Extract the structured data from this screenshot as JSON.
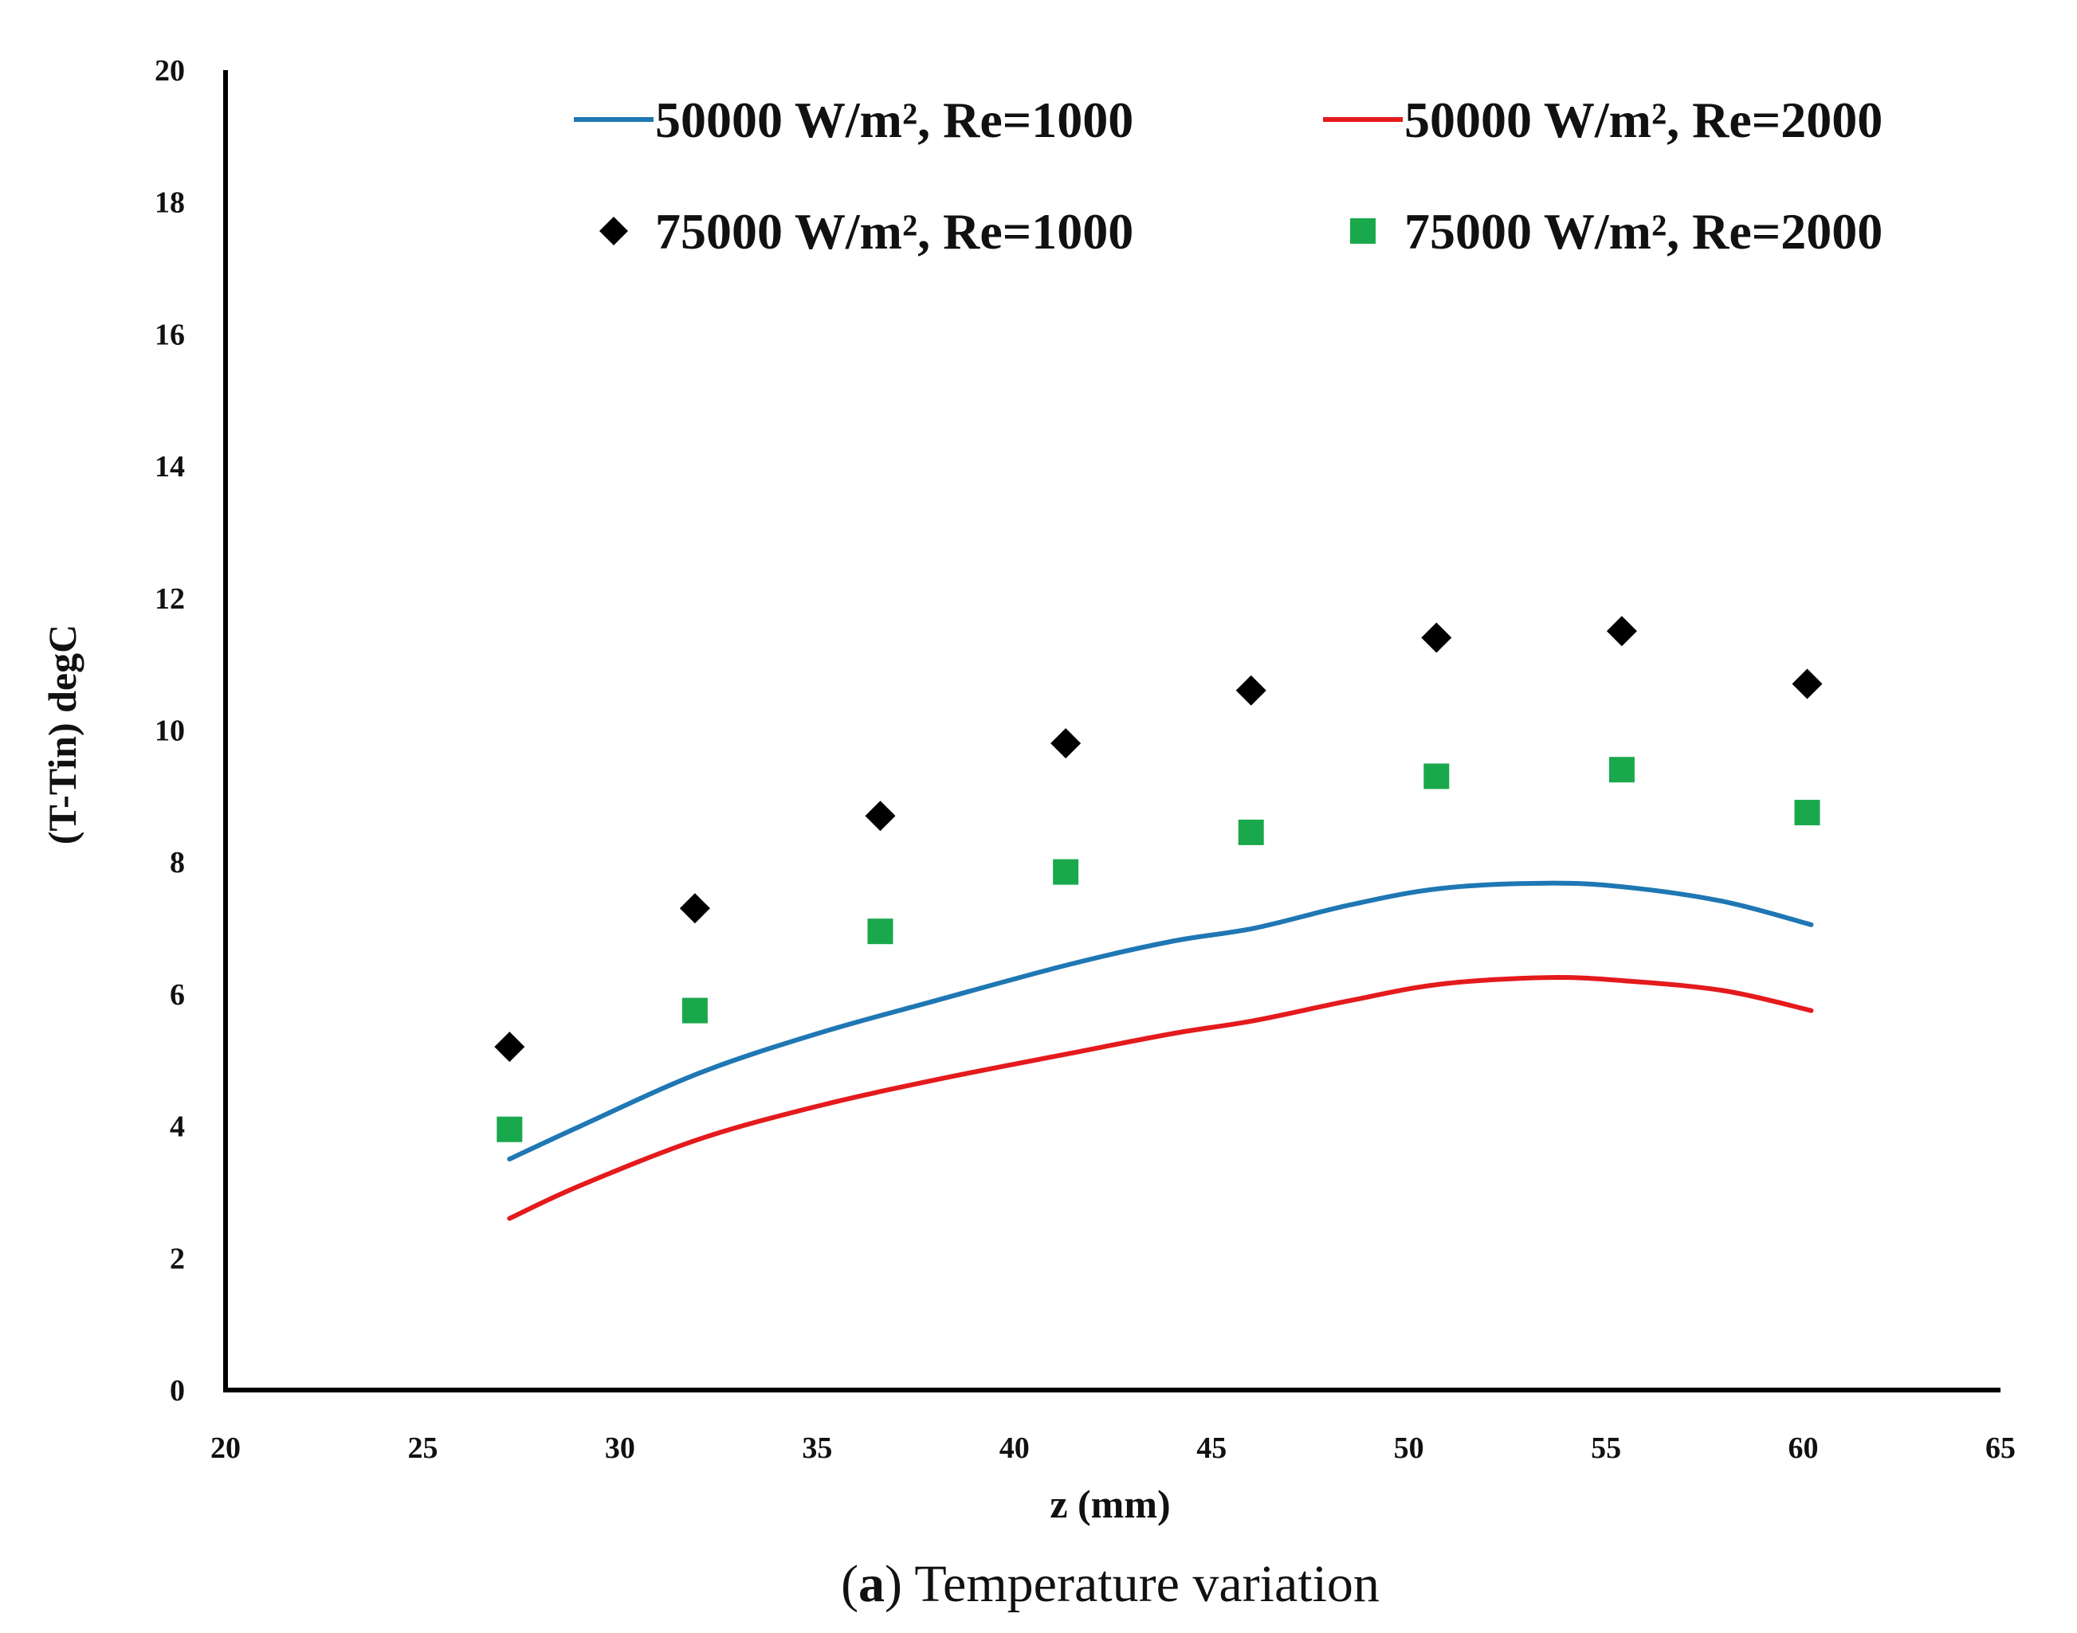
{
  "chart_data": {
    "type": "line",
    "title": "",
    "xlabel": "z (mm)",
    "ylabel": "(T-Tin) degC",
    "xlim": [
      20,
      65
    ],
    "ylim": [
      0,
      20
    ],
    "xticks": [
      20,
      25,
      30,
      35,
      40,
      45,
      50,
      55,
      60,
      65
    ],
    "yticks": [
      0,
      2,
      4,
      6,
      8,
      10,
      12,
      14,
      16,
      18,
      20
    ],
    "grid": false,
    "legend_position": "top",
    "series": [
      {
        "name": "50000 W/m², Re=1000",
        "style": "line",
        "color": "#1f77b4",
        "x": [
          27.2,
          29,
          32,
          35,
          38,
          41.4,
          44,
          46.1,
          48.5,
          50.8,
          53.5,
          55.5,
          58,
          60.2
        ],
        "y": [
          3.5,
          4.0,
          4.8,
          5.4,
          5.9,
          6.45,
          6.8,
          7.0,
          7.35,
          7.6,
          7.68,
          7.62,
          7.4,
          7.05
        ]
      },
      {
        "name": "50000 W/m², Re=2000",
        "style": "line",
        "color": "#e41a1c",
        "x": [
          27.2,
          29,
          32,
          35,
          38,
          41.4,
          44,
          46.1,
          48.5,
          50.8,
          53.5,
          55.5,
          58,
          60.2
        ],
        "y": [
          2.6,
          3.1,
          3.8,
          4.3,
          4.7,
          5.1,
          5.4,
          5.6,
          5.9,
          6.15,
          6.25,
          6.2,
          6.05,
          5.75
        ]
      },
      {
        "name": "75000 W/m², Re=1000",
        "style": "diamond",
        "color": "#000000",
        "x": [
          27.2,
          31.9,
          36.6,
          41.3,
          46.0,
          50.7,
          55.4,
          60.1
        ],
        "y": [
          5.2,
          7.3,
          8.7,
          9.8,
          10.6,
          11.4,
          11.5,
          10.7
        ]
      },
      {
        "name": "75000 W/m², Re=2000",
        "style": "square",
        "color": "#1aa84c",
        "x": [
          27.2,
          31.9,
          36.6,
          41.3,
          46.0,
          50.7,
          55.4,
          60.1
        ],
        "y": [
          3.95,
          5.75,
          6.95,
          7.85,
          8.45,
          9.3,
          9.4,
          8.75
        ]
      }
    ]
  },
  "caption": {
    "label": "a",
    "text": "Temperature variation"
  }
}
